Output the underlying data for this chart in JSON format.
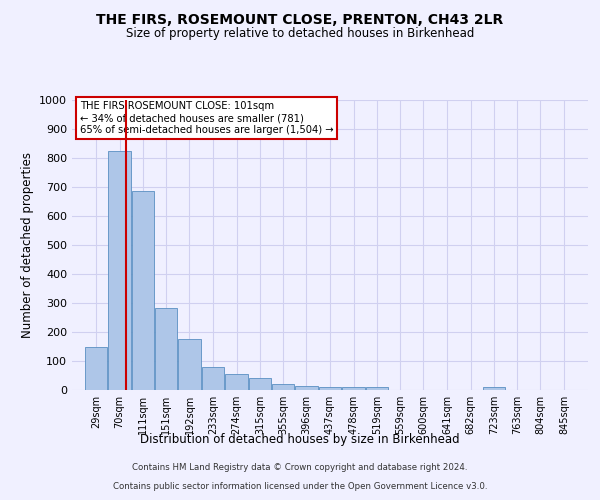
{
  "title": "THE FIRS, ROSEMOUNT CLOSE, PRENTON, CH43 2LR",
  "subtitle": "Size of property relative to detached houses in Birkenhead",
  "xlabel": "Distribution of detached houses by size in Birkenhead",
  "ylabel": "Number of detached properties",
  "bar_labels": [
    "29sqm",
    "70sqm",
    "111sqm",
    "151sqm",
    "192sqm",
    "233sqm",
    "274sqm",
    "315sqm",
    "355sqm",
    "396sqm",
    "437sqm",
    "478sqm",
    "519sqm",
    "559sqm",
    "600sqm",
    "641sqm",
    "682sqm",
    "723sqm",
    "763sqm",
    "804sqm",
    "845sqm"
  ],
  "bar_values": [
    150,
    825,
    685,
    283,
    175,
    80,
    55,
    42,
    22,
    15,
    10,
    10,
    10,
    0,
    0,
    0,
    0,
    10,
    0,
    0,
    0
  ],
  "bar_color": "#aec6e8",
  "bar_edge_color": "#5a8fc2",
  "bin_edges": [
    29,
    70,
    111,
    151,
    192,
    233,
    274,
    315,
    355,
    396,
    437,
    478,
    519,
    559,
    600,
    641,
    682,
    723,
    763,
    804,
    845
  ],
  "bin_width": 41,
  "ylim": [
    0,
    1000
  ],
  "yticks": [
    0,
    100,
    200,
    300,
    400,
    500,
    600,
    700,
    800,
    900,
    1000
  ],
  "annotation_title": "THE FIRS ROSEMOUNT CLOSE: 101sqm",
  "annotation_line1": "← 34% of detached houses are smaller (781)",
  "annotation_line2": "65% of semi-detached houses are larger (1,504) →",
  "annotation_box_color": "#ffffff",
  "annotation_box_edge": "#cc0000",
  "vline_color": "#cc0000",
  "vline_x": 101,
  "grid_color": "#d0d0f0",
  "background_color": "#f0f0ff",
  "footer1": "Contains HM Land Registry data © Crown copyright and database right 2024.",
  "footer2": "Contains public sector information licensed under the Open Government Licence v3.0."
}
